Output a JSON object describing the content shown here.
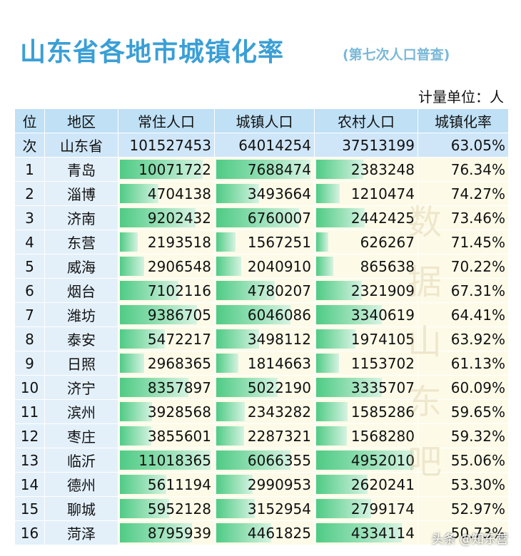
{
  "header": {
    "title": "山东省各地市城镇化率",
    "subtitle": "(第七次人口普查)",
    "unit": "计量单位：人"
  },
  "table": {
    "columns": [
      "位",
      "地区",
      "常住人口",
      "城镇人口",
      "农村人口",
      "城镇化率"
    ],
    "total": [
      "次",
      "山东省",
      101527453,
      64014254,
      37513199,
      "63.05%"
    ],
    "rows": [
      [
        1,
        "青岛",
        10071722,
        7688474,
        2383248,
        "76.34%"
      ],
      [
        2,
        "淄博",
        4704138,
        3493664,
        1210474,
        "74.27%"
      ],
      [
        3,
        "济南",
        9202432,
        6760007,
        2442425,
        "73.46%"
      ],
      [
        4,
        "东营",
        2193518,
        1567251,
        626267,
        "71.45%"
      ],
      [
        5,
        "威海",
        2906548,
        2040910,
        865638,
        "70.22%"
      ],
      [
        6,
        "烟台",
        7102116,
        4780207,
        2321909,
        "67.31%"
      ],
      [
        7,
        "潍坊",
        9386705,
        6046086,
        3340619,
        "64.41%"
      ],
      [
        8,
        "泰安",
        5472217,
        3498112,
        1974105,
        "63.92%"
      ],
      [
        9,
        "日照",
        2968365,
        1814663,
        1153702,
        "61.13%"
      ],
      [
        10,
        "济宁",
        8357897,
        5022190,
        3335707,
        "60.09%"
      ],
      [
        11,
        "滨州",
        3928568,
        2343282,
        1585286,
        "59.65%"
      ],
      [
        12,
        "枣庄",
        3855601,
        2287321,
        1568280,
        "59.32%"
      ],
      [
        13,
        "临沂",
        11018365,
        6066355,
        4952010,
        "55.06%"
      ],
      [
        14,
        "德州",
        5611194,
        2990953,
        2620241,
        "53.30%"
      ],
      [
        15,
        "聊城",
        5952128,
        3152954,
        2799174,
        "52.97%"
      ],
      [
        16,
        "菏泽",
        8795939,
        4461825,
        4334114,
        "50.73%"
      ]
    ]
  },
  "watermark": "数据山东吧",
  "footer": "头条 @知东营"
}
